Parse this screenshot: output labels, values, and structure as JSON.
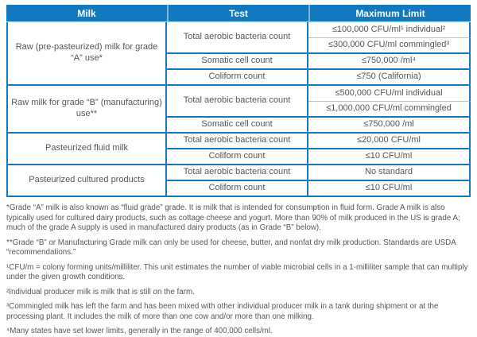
{
  "table": {
    "headers": [
      "Milk",
      "Test",
      "Maximum Limit"
    ],
    "groups": [
      {
        "milk": "Raw (pre-pasteurized) milk for grade “A” use*",
        "tests": [
          {
            "name": "Total aerobic bacteria count",
            "limits": [
              "≤100,000 CFU/ml¹ individual²",
              "≤300,000 CFU/ml commingled³"
            ]
          },
          {
            "name": "Somatic cell count",
            "limits": [
              "≤750,000 /ml⁴"
            ]
          },
          {
            "name": "Coliform count",
            "limits": [
              "≤750 (California)"
            ]
          }
        ]
      },
      {
        "milk": "Raw milk for grade “B” (manufacturing) use**",
        "tests": [
          {
            "name": "Total aerobic bacteria count",
            "limits": [
              "≤500,000 CFU/ml individual",
              "≤1,000,000 CFU/ml commingled"
            ]
          },
          {
            "name": "Somatic cell count",
            "limits": [
              "≤750,000 /ml"
            ]
          }
        ]
      },
      {
        "milk": "Pasteurized fluid milk",
        "tests": [
          {
            "name": "Total aerobic bacteria count",
            "limits": [
              "≤20,000 CFU/ml"
            ]
          },
          {
            "name": "Coliform count",
            "limits": [
              "≤10 CFU/ml"
            ]
          }
        ]
      },
      {
        "milk": "Pasteurized cultured products",
        "tests": [
          {
            "name": "Total aerobic bacteria count",
            "limits": [
              "No standard"
            ]
          },
          {
            "name": "Coliform count",
            "limits": [
              "≤10 CFU/ml"
            ]
          }
        ]
      }
    ]
  },
  "footnotes": [
    "*Grade “A” milk is also known as “fluid grade” grade. It is milk that is intended for consumption in fluid form. Grade A milk is also typically used for cultured dairy products, such as cottage cheese and yogurt. More than 90% of milk produced in the US is grade A; much of the grade A supply is used in manufactured dairy products (as in Grade “B” below).",
    "**Grade “B” or Manufacturing Grade milk can only be used for cheese, butter, and nonfat dry milk production. Standards are USDA “recommendations.”",
    "¹CFU/m = colony forming units/milliliter. This unit estimates the number of viable microbial cells in a 1-milliliter sample that can multiply under the given growth conditions.",
    "²Individual producer milk is milk that is still on the farm.",
    "³Commingled milk has left the farm and has been mixed with other individual producer milk in a tank during shipment or at the processing plant. It includes the milk of more than one cow and/or more than one milking.",
    "⁴Many states have set lower limits, generally in the range of 400,000 cells/ml."
  ],
  "colors": {
    "header_blue": "#1279c0",
    "border_blue": "#1279c0",
    "light_separator": "#9ecbe9",
    "text_gray": "#55565a"
  }
}
